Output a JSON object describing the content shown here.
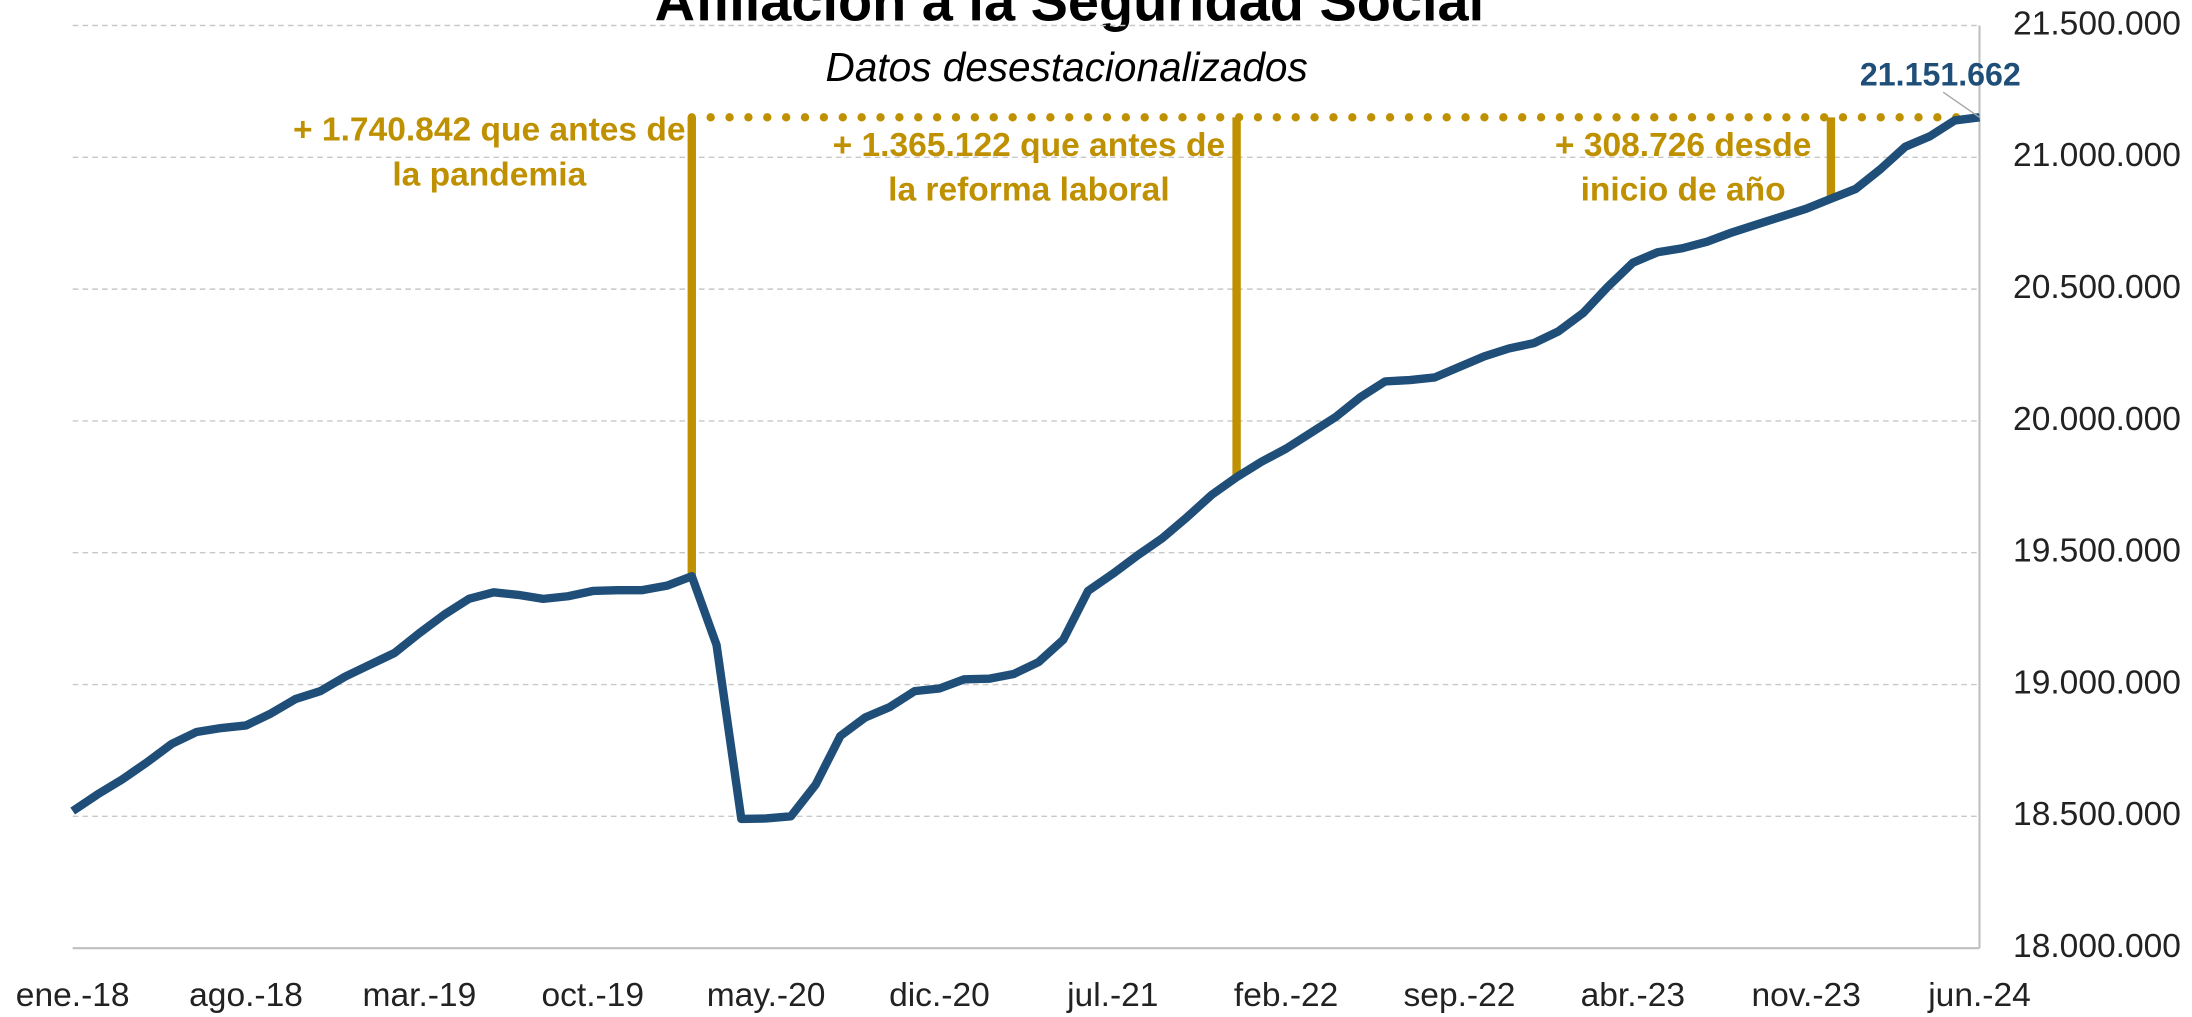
{
  "chart_data": {
    "type": "line",
    "title": "Afiliación a la Seguridad Social",
    "subtitle": "Datos desestacionalizados",
    "categories": [
      "ene.-18",
      null,
      null,
      null,
      null,
      null,
      null,
      "ago.-18",
      null,
      null,
      null,
      null,
      null,
      null,
      "mar.-19",
      null,
      null,
      null,
      null,
      null,
      null,
      "oct.-19",
      null,
      null,
      null,
      null,
      null,
      null,
      "may.-20",
      null,
      null,
      null,
      null,
      null,
      null,
      "dic.-20",
      null,
      null,
      null,
      null,
      null,
      null,
      "jul.-21",
      null,
      null,
      null,
      null,
      null,
      null,
      "feb.-22",
      null,
      null,
      null,
      null,
      null,
      null,
      "sep.-22",
      null,
      null,
      null,
      null,
      null,
      null,
      "abr.-23",
      null,
      null,
      null,
      null,
      null,
      null,
      "nov.-23",
      null,
      null,
      null,
      null,
      null,
      null,
      "jun.-24"
    ],
    "series": [
      {
        "name": "Afiliación",
        "color": "#1f4e79",
        "values": [
          18520000,
          18583000,
          18640000,
          18705000,
          18775000,
          18820000,
          18835000,
          18845000,
          18890000,
          18945000,
          18975000,
          19030000,
          19075000,
          19120000,
          19195000,
          19265000,
          19325000,
          19350000,
          19340000,
          19325000,
          19335000,
          19355000,
          19358000,
          19358000,
          19375000,
          19410820,
          19150000,
          18490000,
          18492000,
          18500000,
          18620000,
          18805000,
          18875000,
          18915000,
          18975000,
          18985000,
          19020000,
          19022000,
          19040000,
          19085000,
          19170000,
          19355000,
          19420000,
          19490000,
          19555000,
          19635000,
          19720000,
          19786540,
          19845000,
          19895000,
          19955000,
          20015000,
          20090000,
          20150000,
          20155000,
          20165000,
          20205000,
          20245000,
          20275000,
          20295000,
          20340000,
          20410000,
          20510000,
          20600000,
          20640000,
          20655000,
          20680000,
          20715000,
          20745000,
          20775000,
          20805000,
          20842936,
          20880000,
          20955000,
          21040000,
          21080000,
          21140000,
          21151662
        ],
        "value_labels": [
          null,
          null,
          null,
          null,
          null,
          null,
          null,
          null,
          null,
          null,
          null,
          null,
          null,
          null,
          null,
          null,
          null,
          null,
          null,
          null,
          null,
          null,
          null,
          null,
          null,
          null,
          null,
          null,
          null,
          null,
          null,
          null,
          null,
          null,
          null,
          null,
          null,
          null,
          null,
          null,
          null,
          null,
          null,
          null,
          null,
          null,
          null,
          null,
          null,
          null,
          null,
          null,
          null,
          null,
          null,
          null,
          null,
          null,
          null,
          null,
          null,
          null,
          null,
          null,
          null,
          null,
          null,
          null,
          null,
          null,
          null,
          null,
          null,
          null,
          null,
          null,
          null,
          "21.151.662"
        ]
      }
    ],
    "ylim": [
      18000000,
      21500000
    ],
    "yticks": [
      {
        "value": 18000000,
        "label": "18.000.000"
      },
      {
        "value": 18500000,
        "label": "18.500.000"
      },
      {
        "value": 19000000,
        "label": "19.000.000"
      },
      {
        "value": 19500000,
        "label": "19.500.000"
      },
      {
        "value": 20000000,
        "label": "20.000.000"
      },
      {
        "value": 20500000,
        "label": "20.500.000"
      },
      {
        "value": 21000000,
        "label": "21.000.000"
      },
      {
        "value": 21500000,
        "label": "21.500.000"
      }
    ],
    "grid": true,
    "annotation_color": "#bf9000",
    "annotations": [
      [
        "+ 1.740.842 que antes de",
        "la pandemia"
      ],
      [
        "+ 1.365.122 que antes de",
        "la reforma laboral"
      ],
      [
        "+ 308.726 desde",
        "inicio de año"
      ]
    ]
  }
}
